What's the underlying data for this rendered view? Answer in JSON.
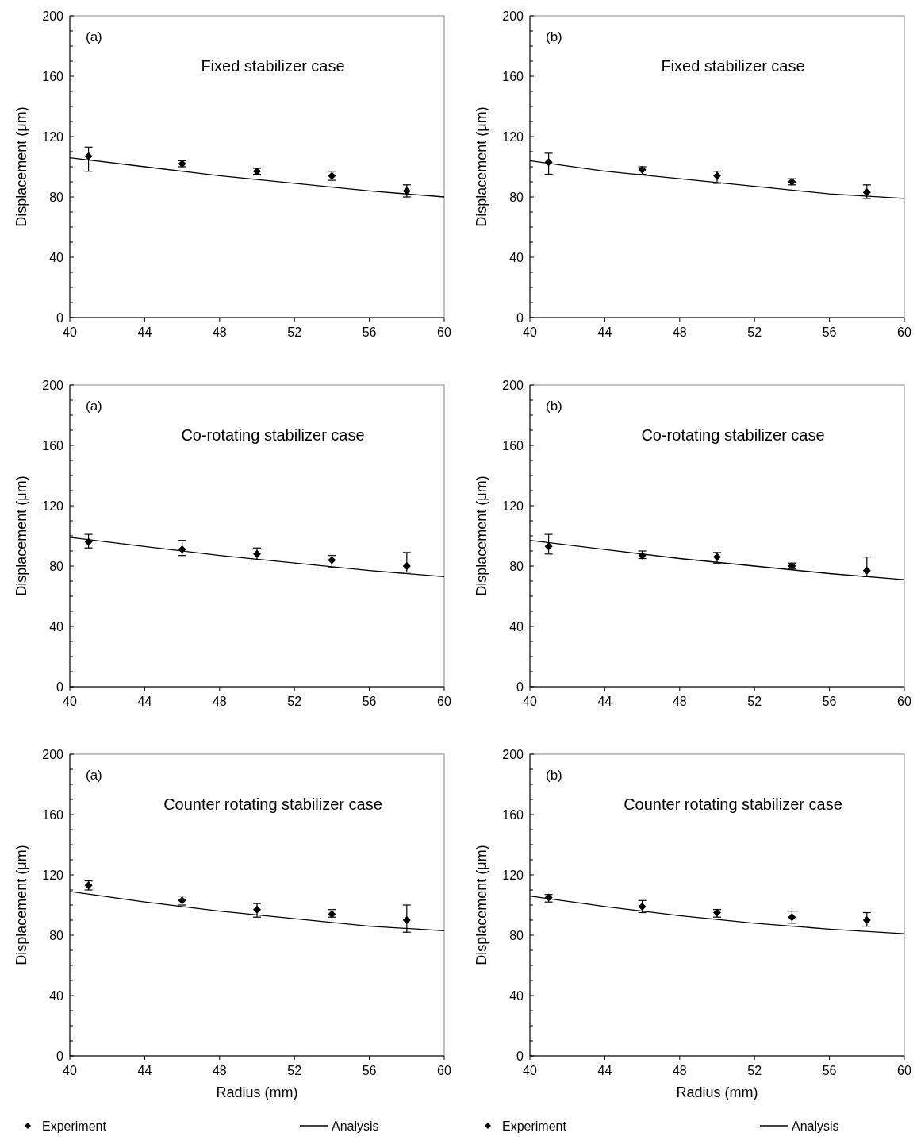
{
  "chart_data": [
    {
      "type": "scatter",
      "ylabel": "Displacement (μm)",
      "annotations": [
        "(a)",
        "Fixed stabilizer case"
      ],
      "xlim": [
        40,
        60
      ],
      "xticks": [
        40,
        44,
        48,
        52,
        56,
        60
      ],
      "ylim": [
        0,
        200
      ],
      "yticks": [
        0,
        40,
        80,
        120,
        160,
        200
      ],
      "grid": false,
      "series": [
        {
          "marker": "diamond",
          "color": "#000000",
          "x": [
            41,
            46,
            50,
            54,
            58
          ],
          "values": [
            107,
            102,
            97,
            94,
            84
          ],
          "errors": [
            [
              97,
              113
            ],
            [
              100,
              104
            ],
            [
              95,
              99
            ],
            [
              91,
              97
            ],
            [
              80,
              88
            ]
          ]
        },
        {
          "type": "line",
          "line_style": "solid",
          "color": "#000000",
          "x": [
            40,
            44,
            48,
            52,
            56,
            60
          ],
          "values": [
            106,
            100,
            94,
            89,
            84,
            80
          ]
        }
      ]
    },
    {
      "type": "scatter",
      "ylabel": "Displacement (μm)",
      "annotations": [
        "(b)",
        "Fixed stabilizer case"
      ],
      "xlim": [
        40,
        60
      ],
      "xticks": [
        40,
        44,
        48,
        52,
        56,
        60
      ],
      "ylim": [
        0,
        200
      ],
      "yticks": [
        0,
        40,
        80,
        120,
        160,
        200
      ],
      "grid": false,
      "series": [
        {
          "marker": "diamond",
          "color": "#000000",
          "x": [
            41,
            46,
            50,
            54,
            58
          ],
          "values": [
            103,
            98,
            94,
            90,
            83
          ],
          "errors": [
            [
              95,
              109
            ],
            [
              95,
              100
            ],
            [
              89,
              97
            ],
            [
              88,
              92
            ],
            [
              79,
              88
            ]
          ]
        },
        {
          "type": "line",
          "line_style": "solid",
          "color": "#000000",
          "x": [
            40,
            44,
            48,
            52,
            56,
            60
          ],
          "values": [
            104,
            97,
            92,
            87,
            82,
            79
          ]
        }
      ]
    },
    {
      "type": "scatter",
      "ylabel": "Displacement (μm)",
      "annotations": [
        "(a)",
        "Co-rotating stabilizer case"
      ],
      "xlim": [
        40,
        60
      ],
      "xticks": [
        40,
        44,
        48,
        52,
        56,
        60
      ],
      "ylim": [
        0,
        200
      ],
      "yticks": [
        0,
        40,
        80,
        120,
        160,
        200
      ],
      "grid": false,
      "series": [
        {
          "marker": "diamond",
          "color": "#000000",
          "x": [
            41,
            46,
            50,
            54,
            58
          ],
          "values": [
            96,
            91,
            88,
            84,
            80
          ],
          "errors": [
            [
              92,
              101
            ],
            [
              87,
              97
            ],
            [
              84,
              92
            ],
            [
              79,
              87
            ],
            [
              76,
              89
            ]
          ]
        },
        {
          "type": "line",
          "line_style": "solid",
          "color": "#000000",
          "x": [
            40,
            44,
            48,
            52,
            56,
            60
          ],
          "values": [
            99,
            93,
            87,
            82,
            77,
            73
          ]
        }
      ]
    },
    {
      "type": "scatter",
      "ylabel": "Displacement (μm)",
      "annotations": [
        "(b)",
        "Co-rotating stabilizer case"
      ],
      "xlim": [
        40,
        60
      ],
      "xticks": [
        40,
        44,
        48,
        52,
        56,
        60
      ],
      "ylim": [
        0,
        200
      ],
      "yticks": [
        0,
        40,
        80,
        120,
        160,
        200
      ],
      "grid": false,
      "series": [
        {
          "marker": "diamond",
          "color": "#000000",
          "x": [
            41,
            46,
            50,
            54,
            58
          ],
          "values": [
            93,
            87,
            86,
            80,
            77
          ],
          "errors": [
            [
              88,
              101
            ],
            [
              85,
              90
            ],
            [
              82,
              89
            ],
            [
              78,
              82
            ],
            [
              73,
              86
            ]
          ]
        },
        {
          "type": "line",
          "line_style": "solid",
          "color": "#000000",
          "x": [
            40,
            44,
            48,
            52,
            56,
            60
          ],
          "values": [
            97,
            91,
            85,
            80,
            75,
            71
          ]
        }
      ]
    },
    {
      "type": "scatter",
      "xlabel": "Radius (mm)",
      "ylabel": "Displacement (μm)",
      "annotations": [
        "(a)",
        "Counter rotating stabilizer case"
      ],
      "xlim": [
        40,
        60
      ],
      "xticks": [
        40,
        44,
        48,
        52,
        56,
        60
      ],
      "ylim": [
        0,
        200
      ],
      "yticks": [
        0,
        40,
        80,
        120,
        160,
        200
      ],
      "grid": false,
      "legend": "bottom",
      "series": [
        {
          "name": "Experiment",
          "marker": "diamond",
          "color": "#000000",
          "x": [
            41,
            46,
            50,
            54,
            58
          ],
          "values": [
            113,
            103,
            97,
            94,
            90
          ],
          "errors": [
            [
              110,
              116
            ],
            [
              100,
              106
            ],
            [
              92,
              101
            ],
            [
              92,
              97
            ],
            [
              82,
              100
            ]
          ]
        },
        {
          "name": "Analysis",
          "type": "line",
          "line_style": "solid",
          "color": "#000000",
          "x": [
            40,
            44,
            48,
            52,
            56,
            60
          ],
          "values": [
            109,
            102,
            96,
            91,
            86,
            83
          ]
        }
      ]
    },
    {
      "type": "scatter",
      "xlabel": "Radius (mm)",
      "ylabel": "Displacement (μm)",
      "annotations": [
        "(b)",
        "Counter rotating stabilizer case"
      ],
      "xlim": [
        40,
        60
      ],
      "xticks": [
        40,
        44,
        48,
        52,
        56,
        60
      ],
      "ylim": [
        0,
        200
      ],
      "yticks": [
        0,
        40,
        80,
        120,
        160,
        200
      ],
      "grid": false,
      "legend": "bottom",
      "series": [
        {
          "name": "Experiment",
          "marker": "diamond",
          "color": "#000000",
          "x": [
            41,
            46,
            50,
            54,
            58
          ],
          "values": [
            105,
            99,
            95,
            92,
            90
          ],
          "errors": [
            [
              102,
              107
            ],
            [
              95,
              103
            ],
            [
              92,
              97
            ],
            [
              88,
              96
            ],
            [
              86,
              95
            ]
          ]
        },
        {
          "name": "Analysis",
          "type": "line",
          "line_style": "solid",
          "color": "#000000",
          "x": [
            40,
            44,
            48,
            52,
            56,
            60
          ],
          "values": [
            106,
            99,
            93,
            88,
            84,
            81
          ]
        }
      ]
    }
  ]
}
